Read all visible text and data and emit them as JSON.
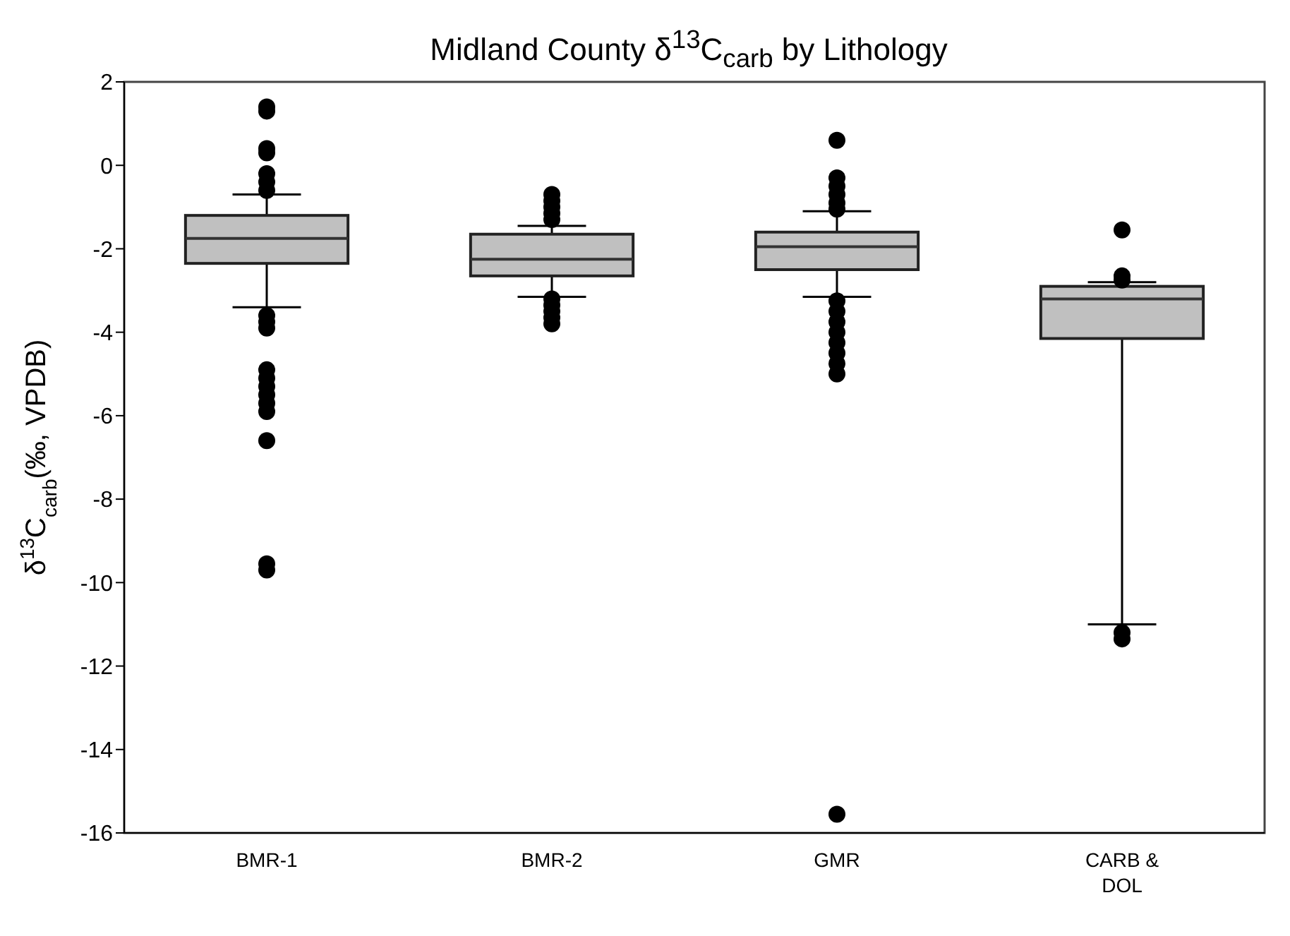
{
  "chart_data": {
    "type": "box",
    "title": "Midland County δ$^{13}$C$_{carb}$ by Lithology",
    "ylabel": "δ$^{13}$C$_{carb}$(‰, VPDB)",
    "categories": [
      "BMR-1",
      "BMR-2",
      "GMR",
      "CARB & DOL"
    ],
    "color": "#c0c0c0",
    "boxes": [
      {
        "low": -3.4,
        "q1": -2.35,
        "median": -1.75,
        "q3": -1.2,
        "high": -0.7,
        "outliers": [
          1.4,
          1.3,
          0.4,
          0.3,
          -0.2,
          -0.4,
          -0.6,
          -3.6,
          -3.75,
          -3.9,
          -4.9,
          -5.1,
          -5.3,
          -5.5,
          -5.7,
          -5.9,
          -6.6,
          -9.55,
          -9.7
        ]
      },
      {
        "low": -3.15,
        "q1": -2.65,
        "median": -2.25,
        "q3": -1.65,
        "high": -1.45,
        "outliers": [
          -0.7,
          -0.85,
          -1.0,
          -1.15,
          -1.3,
          -3.2,
          -3.35,
          -3.5,
          -3.65,
          -3.8
        ]
      },
      {
        "low": -3.15,
        "q1": -2.5,
        "median": -1.95,
        "q3": -1.6,
        "high": -1.1,
        "outliers": [
          0.6,
          -0.3,
          -0.5,
          -0.7,
          -0.9,
          -1.05,
          -3.25,
          -3.5,
          -3.75,
          -4.0,
          -4.25,
          -4.5,
          -4.75,
          -5.0,
          -15.55
        ]
      },
      {
        "low": -11.0,
        "q1": -4.15,
        "median": -3.2,
        "q3": -2.9,
        "high": -2.8,
        "outliers": [
          -1.55,
          -2.65,
          -2.75,
          -11.2,
          -11.35
        ]
      }
    ],
    "ylim": [
      -16,
      2
    ],
    "yticks": [
      -16,
      -14,
      -12,
      -10,
      -8,
      -6,
      -4,
      -2,
      0,
      2
    ]
  }
}
